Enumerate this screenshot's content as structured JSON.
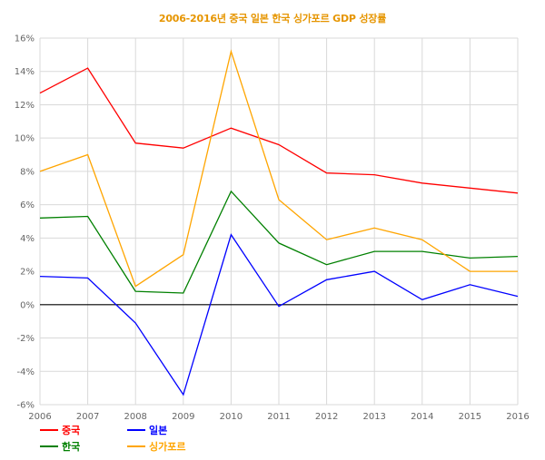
{
  "chart_data": {
    "type": "line",
    "title": "2006-2016년 중국 일본 한국 싱가포르 GDP 성장률",
    "title_color": "#e69500",
    "xlabel": "",
    "ylabel": "",
    "x": [
      "2006",
      "2007",
      "2008",
      "2009",
      "2010",
      "2011",
      "2012",
      "2013",
      "2014",
      "2015",
      "2016"
    ],
    "ylim": [
      -6,
      16
    ],
    "y_ticks": [
      16,
      14,
      12,
      10,
      8,
      6,
      4,
      2,
      0,
      -2,
      -4,
      -6
    ],
    "y_tick_labels": [
      "16%",
      "14%",
      "12%",
      "10%",
      "8%",
      "6%",
      "4%",
      "2%",
      "0%",
      "-2%",
      "-4%",
      "-6%"
    ],
    "grid": true,
    "legend_position": "bottom-left",
    "series": [
      {
        "name": "중국",
        "color": "#ff0000",
        "values": [
          12.7,
          14.2,
          9.7,
          9.4,
          10.6,
          9.6,
          7.9,
          7.8,
          7.3,
          7.0,
          6.7
        ]
      },
      {
        "name": "일본",
        "color": "#0000ff",
        "values": [
          1.7,
          1.6,
          -1.1,
          -5.4,
          4.2,
          -0.1,
          1.5,
          2.0,
          0.3,
          1.2,
          0.5
        ]
      },
      {
        "name": "한국",
        "color": "#008000",
        "values": [
          5.2,
          5.3,
          0.8,
          0.7,
          6.8,
          3.7,
          2.4,
          3.2,
          3.2,
          2.8,
          2.9
        ]
      },
      {
        "name": "싱가포르",
        "color": "#ffa500",
        "values": [
          8.0,
          9.0,
          1.1,
          3.0,
          15.2,
          6.3,
          3.9,
          4.6,
          3.9,
          2.0,
          2.0
        ]
      }
    ]
  }
}
